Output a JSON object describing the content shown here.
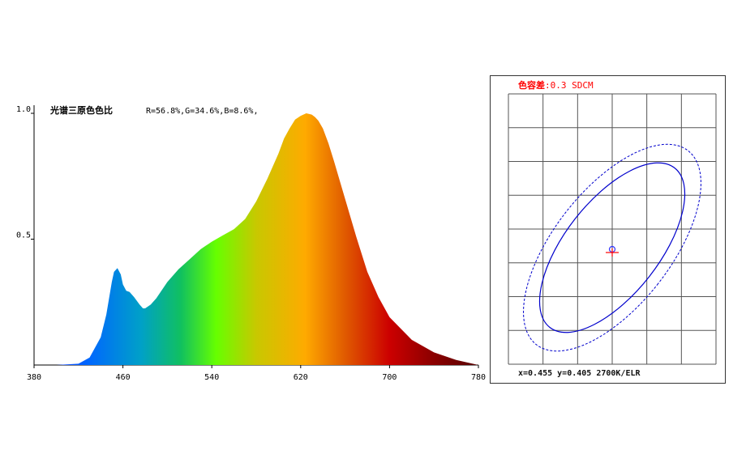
{
  "chart_data": [
    {
      "type": "area",
      "title": "光谱三原色色比",
      "subtitle": "R=56.8%,G=34.6%,B=8.6%,",
      "xlabel": "",
      "ylabel": "",
      "xlim": [
        380,
        780
      ],
      "ylim": [
        0,
        1.0
      ],
      "x_ticks": [
        "380",
        "460",
        "540",
        "620",
        "700",
        "780"
      ],
      "y_ticks": [
        "1.0",
        "0.5"
      ],
      "grid": false,
      "fill": "spectral-gradient",
      "x": [
        380,
        400,
        420,
        430,
        440,
        445,
        450,
        452,
        455,
        458,
        460,
        463,
        466,
        470,
        475,
        478,
        480,
        485,
        490,
        500,
        510,
        520,
        530,
        540,
        550,
        560,
        570,
        580,
        590,
        600,
        605,
        610,
        615,
        620,
        625,
        630,
        633,
        636,
        640,
        645,
        650,
        660,
        670,
        680,
        690,
        700,
        720,
        740,
        760,
        780
      ],
      "values": [
        0,
        0,
        0.005,
        0.03,
        0.11,
        0.2,
        0.33,
        0.37,
        0.385,
        0.36,
        0.32,
        0.295,
        0.29,
        0.27,
        0.24,
        0.225,
        0.225,
        0.24,
        0.265,
        0.33,
        0.38,
        0.42,
        0.46,
        0.49,
        0.515,
        0.54,
        0.58,
        0.65,
        0.74,
        0.84,
        0.9,
        0.94,
        0.975,
        0.99,
        1.0,
        0.995,
        0.985,
        0.97,
        0.94,
        0.88,
        0.81,
        0.66,
        0.51,
        0.37,
        0.27,
        0.19,
        0.1,
        0.05,
        0.02,
        0.0
      ]
    },
    {
      "type": "scatter",
      "title": "色容差:0.3 SDCM",
      "grid": true,
      "point": {
        "x": 0.455,
        "y": 0.405
      },
      "cct_label": "2700K/ELR",
      "ellipses": [
        {
          "name": "inner",
          "style": "solid",
          "color": "#0000cc"
        },
        {
          "name": "outer",
          "style": "dashed",
          "color": "#0000cc"
        }
      ]
    }
  ],
  "sdcm": {
    "title_cn": "色容差",
    "title_value": ":0.3 SDCM",
    "coords_text": "x=0.455 y=0.405 2700K/ELR"
  },
  "colors": {
    "grid": "#555555",
    "ellipse": "#0000cc",
    "marker_circle": "#3333ff",
    "marker_cross": "#ff0000",
    "title": "#ff0000"
  }
}
